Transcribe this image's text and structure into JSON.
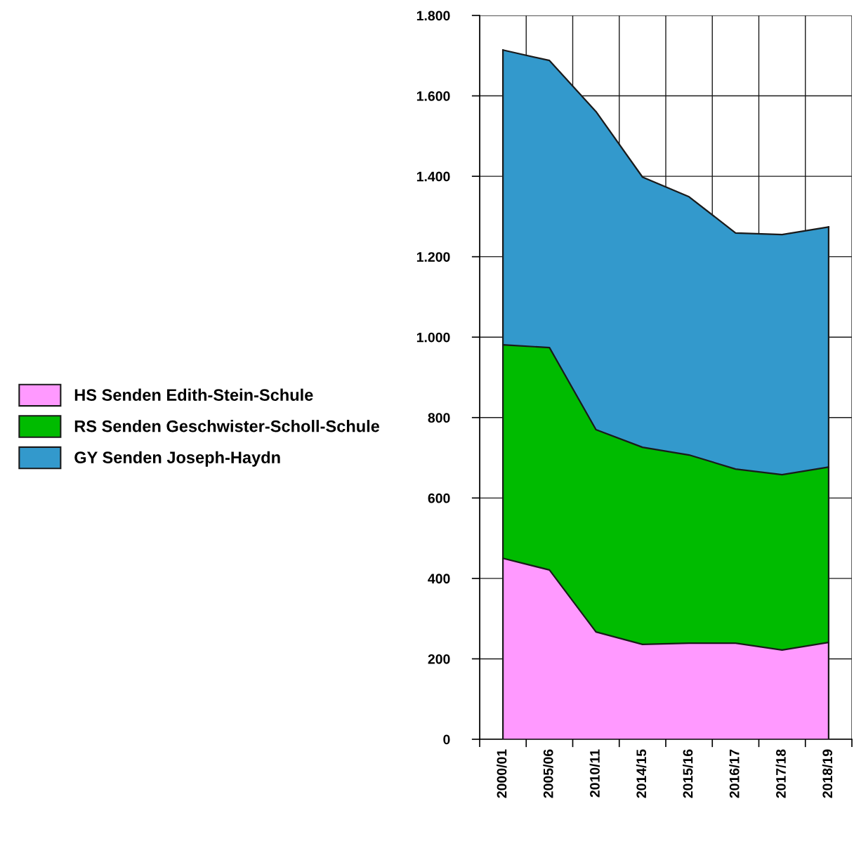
{
  "chart_data": {
    "type": "area",
    "stacked": true,
    "categories": [
      "2000/01",
      "2005/06",
      "2010/11",
      "2014/15",
      "2015/16",
      "2016/17",
      "2017/18",
      "2018/19"
    ],
    "series": [
      {
        "name": "HS Senden Edith-Stein-Schule",
        "color": "#ff99ff",
        "values": [
          450,
          421,
          267,
          236,
          239,
          239,
          222,
          241
        ]
      },
      {
        "name": "RS Senden Geschwister-Scholl-Schule",
        "color": "#00bb00",
        "values": [
          531,
          553,
          503,
          490,
          468,
          433,
          436,
          436
        ]
      },
      {
        "name": "GY Senden Joseph-Haydn",
        "color": "#3399cc",
        "values": [
          733,
          714,
          791,
          672,
          642,
          587,
          597,
          597
        ]
      }
    ],
    "ylim": [
      0,
      1800
    ],
    "yticks": [
      0,
      200,
      400,
      600,
      800,
      {
        "value": 1000,
        "label": "1.000"
      },
      {
        "value": 1200,
        "label": "1.200"
      },
      {
        "value": 1400,
        "label": "1.400"
      },
      {
        "value": 1600,
        "label": "1.600"
      },
      {
        "value": 1800,
        "label": "1.800"
      }
    ],
    "grid": true,
    "legend": "left"
  }
}
